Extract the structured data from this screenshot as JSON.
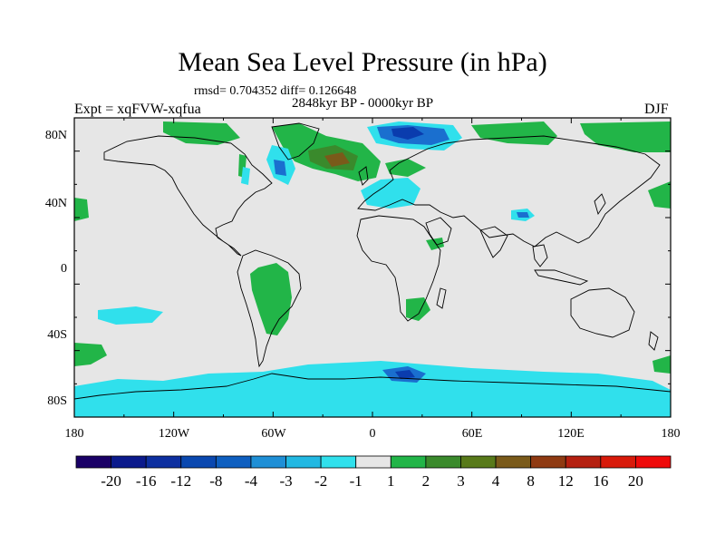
{
  "figure": {
    "title": "Mean Sea Level Pressure (in hPa)",
    "stats": "rmsd= 0.704352 diff= 0.126648",
    "period": "2848kyr BP - 0000kyr BP",
    "experiment": "Expt = xqFVW-xqfua",
    "season": "DJF"
  },
  "axes": {
    "x_ticks": [
      "180",
      "120W",
      "60W",
      "0",
      "60E",
      "120E",
      "180"
    ],
    "y_ticks": [
      "80N",
      "40N",
      "0",
      "40S",
      "80S"
    ]
  },
  "colorbar": {
    "labels": [
      "-20",
      "-16",
      "-12",
      "-8",
      "-4",
      "-3",
      "-2",
      "-1",
      "1",
      "2",
      "3",
      "4",
      "8",
      "12",
      "16",
      "20"
    ],
    "colors": [
      "#1a0066",
      "#0b1a8c",
      "#0d2fa0",
      "#0a48b0",
      "#0e5fc0",
      "#1f8fd6",
      "#22b8e2",
      "#30e0ec",
      "#e6e6e6",
      "#22b548",
      "#3a8a2c",
      "#587a1a",
      "#7a5a1a",
      "#8f3a12",
      "#b52010",
      "#d81a0a",
      "#ee0a0a"
    ]
  },
  "map": {
    "background_color": "#e6e6e6",
    "positive_color": "#22b548",
    "negative_color": "#30e0ec",
    "strong_negative_color": "#1a6fcf",
    "very_strong_negative_color": "#0a3cae",
    "strong_positive_color": "#3a8a2c",
    "very_strong_positive_color": "#7a5a1a"
  }
}
